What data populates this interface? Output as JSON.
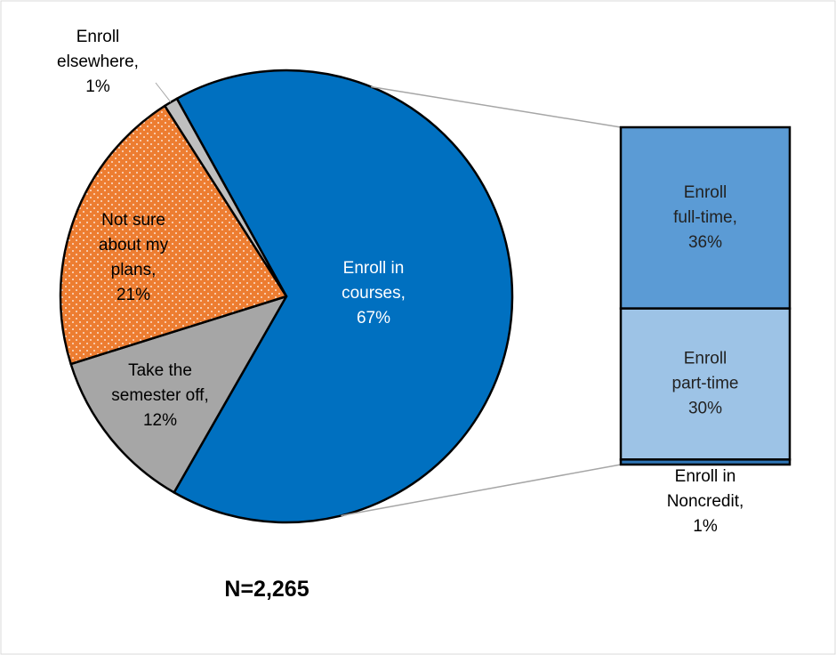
{
  "chart_data": {
    "type": "pie",
    "categories": [
      "Enroll in courses,",
      "Take the semester off,",
      "Not sure about my plans,",
      "Enroll elsewhere,"
    ],
    "values": [
      67,
      12,
      21,
      1
    ],
    "value_labels": [
      "67%",
      "12%",
      "21%",
      "1%"
    ],
    "colors": [
      "#0070c0",
      "#a6a6a6",
      "#ed7d31",
      "#bfbfbf"
    ],
    "breakdown": {
      "type": "bar",
      "categories": [
        "Enroll full-time,",
        "Enroll part-time",
        "Enroll in Noncredit,"
      ],
      "values": [
        36,
        30,
        1
      ],
      "value_labels": [
        "36%",
        "30%",
        "1%"
      ],
      "colors": [
        "#5b9bd5",
        "#9dc3e6",
        "#2e75b6"
      ]
    },
    "annotation": "N=2,265"
  }
}
